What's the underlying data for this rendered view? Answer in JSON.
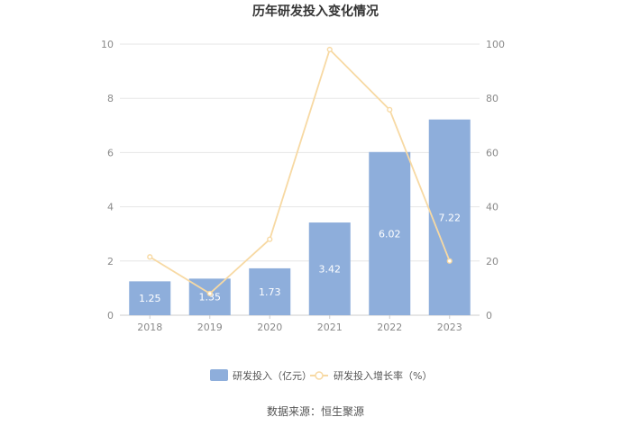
{
  "chart_data": {
    "type": "bar",
    "title": "历年研发投入变化情况",
    "categories": [
      "2018",
      "2019",
      "2020",
      "2021",
      "2022",
      "2023"
    ],
    "series": [
      {
        "name": "研发投入（亿元）",
        "type": "bar",
        "axis": "left",
        "color": "#8eaedb",
        "values": [
          1.25,
          1.35,
          1.73,
          3.42,
          6.02,
          7.22
        ],
        "labels": [
          "1.25",
          "1.35",
          "1.73",
          "3.42",
          "6.02",
          "7.22"
        ]
      },
      {
        "name": "研发投入增长率（%）",
        "type": "line",
        "axis": "right",
        "color": "#f7d9a3",
        "values": [
          21.5,
          8.0,
          28.0,
          98.0,
          75.8,
          20.0
        ]
      }
    ],
    "y_left": {
      "min": 0,
      "max": 10,
      "ticks": [
        "0",
        "2",
        "4",
        "6",
        "8",
        "10"
      ]
    },
    "y_right": {
      "min": 0,
      "max": 100,
      "ticks": [
        "0",
        "20",
        "40",
        "60",
        "80",
        "100"
      ]
    },
    "grid": true,
    "legend_position": "bottom"
  },
  "source": "数据来源：恒生聚源"
}
